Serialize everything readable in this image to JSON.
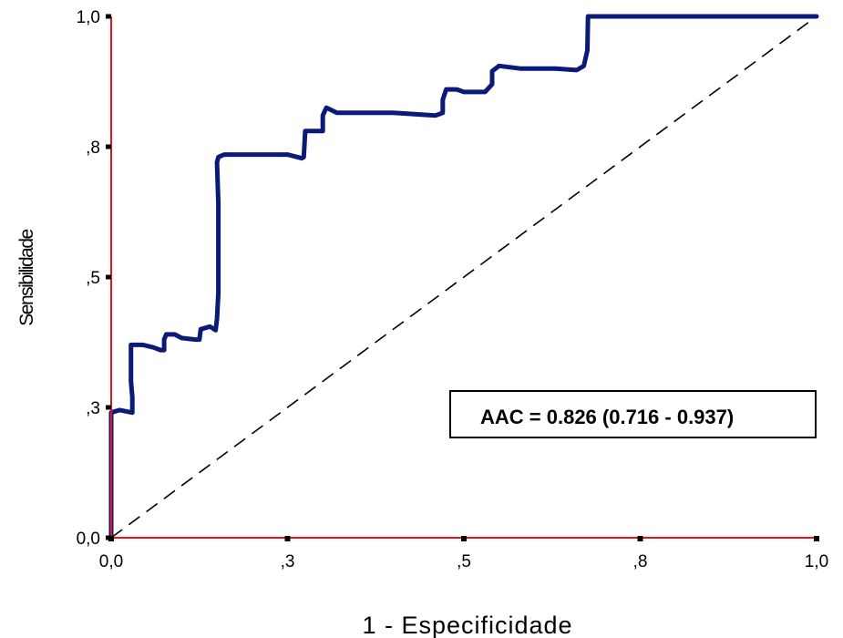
{
  "chart_data": {
    "type": "line",
    "xlabel": "1 - Especificidade",
    "ylabel": "Sensibilidade",
    "xlim": [
      0,
      1
    ],
    "ylim": [
      0,
      1
    ],
    "x_ticks": [
      {
        "value": 0.0,
        "label": "0,0"
      },
      {
        "value": 0.25,
        "label": ",3"
      },
      {
        "value": 0.5,
        "label": ",5"
      },
      {
        "value": 0.75,
        "label": ",8"
      },
      {
        "value": 1.0,
        "label": "1,0"
      }
    ],
    "y_ticks": [
      {
        "value": 0.0,
        "label": "0,0"
      },
      {
        "value": 0.25,
        "label": ",3"
      },
      {
        "value": 0.5,
        "label": ",5"
      },
      {
        "value": 0.75,
        "label": ",8"
      },
      {
        "value": 1.0,
        "label": "1,0"
      }
    ],
    "annotation": "AAC = 0.826 (0.716 - 0.937)",
    "reference_line": {
      "style": "dashed",
      "from": [
        0,
        0
      ],
      "to": [
        1,
        1
      ],
      "color": "#000000"
    },
    "axis_color": "#e8141c",
    "series": [
      {
        "color": "#0a1a78",
        "points": [
          [
            0.0,
            0.0
          ],
          [
            0.0,
            0.17
          ],
          [
            0.0,
            0.2
          ],
          [
            0.0,
            0.24
          ],
          [
            0.012,
            0.245
          ],
          [
            0.03,
            0.24
          ],
          [
            0.03,
            0.27
          ],
          [
            0.028,
            0.3
          ],
          [
            0.028,
            0.37
          ],
          [
            0.045,
            0.37
          ],
          [
            0.06,
            0.365
          ],
          [
            0.07,
            0.36
          ],
          [
            0.075,
            0.36
          ],
          [
            0.075,
            0.38
          ],
          [
            0.078,
            0.39
          ],
          [
            0.09,
            0.39
          ],
          [
            0.1,
            0.383
          ],
          [
            0.12,
            0.38
          ],
          [
            0.125,
            0.38
          ],
          [
            0.127,
            0.4
          ],
          [
            0.14,
            0.405
          ],
          [
            0.148,
            0.398
          ],
          [
            0.15,
            0.42
          ],
          [
            0.152,
            0.47
          ],
          [
            0.152,
            0.64
          ],
          [
            0.15,
            0.72
          ],
          [
            0.152,
            0.73
          ],
          [
            0.16,
            0.735
          ],
          [
            0.25,
            0.735
          ],
          [
            0.27,
            0.728
          ],
          [
            0.273,
            0.73
          ],
          [
            0.275,
            0.78
          ],
          [
            0.3,
            0.78
          ],
          [
            0.3,
            0.79
          ],
          [
            0.3,
            0.81
          ],
          [
            0.305,
            0.825
          ],
          [
            0.32,
            0.815
          ],
          [
            0.4,
            0.815
          ],
          [
            0.46,
            0.81
          ],
          [
            0.47,
            0.815
          ],
          [
            0.47,
            0.84
          ],
          [
            0.475,
            0.86
          ],
          [
            0.49,
            0.86
          ],
          [
            0.5,
            0.855
          ],
          [
            0.53,
            0.855
          ],
          [
            0.54,
            0.87
          ],
          [
            0.54,
            0.895
          ],
          [
            0.55,
            0.905
          ],
          [
            0.58,
            0.9
          ],
          [
            0.63,
            0.9
          ],
          [
            0.66,
            0.897
          ],
          [
            0.67,
            0.905
          ],
          [
            0.675,
            0.935
          ],
          [
            0.676,
            1.0
          ],
          [
            0.69,
            1.0
          ],
          [
            1.0,
            1.0
          ]
        ]
      }
    ]
  }
}
